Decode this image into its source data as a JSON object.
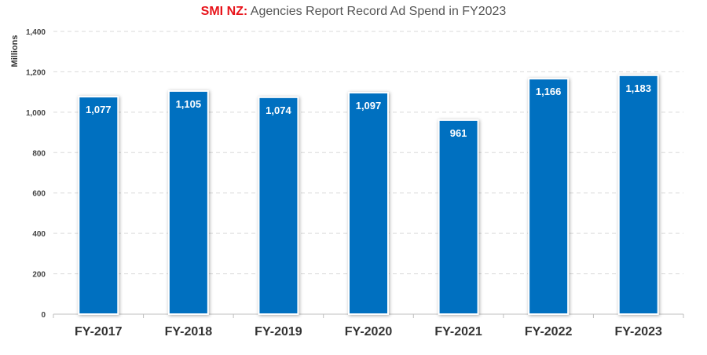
{
  "chart_data": {
    "type": "bar",
    "title_brand": "SMI NZ:",
    "title_rest": " Agencies Report Record Ad Spend in FY2023",
    "ylabel": "Millions",
    "categories": [
      "FY-2017",
      "FY-2018",
      "FY-2019",
      "FY-2020",
      "FY-2021",
      "FY-2022",
      "FY-2023"
    ],
    "values": [
      1077,
      1105,
      1074,
      1097,
      961,
      1166,
      1183
    ],
    "value_labels": [
      "1,077",
      "1,105",
      "1,074",
      "1,097",
      "961",
      "1,166",
      "1,183"
    ],
    "ylim": [
      0,
      1400
    ],
    "yticks": [
      0,
      200,
      400,
      600,
      800,
      1000,
      1200,
      1400
    ],
    "ytick_labels": [
      "0",
      "200",
      "400",
      "600",
      "800",
      "1,000",
      "1,200",
      "1,400"
    ],
    "grid": true,
    "bar_color": "#0070c0"
  }
}
